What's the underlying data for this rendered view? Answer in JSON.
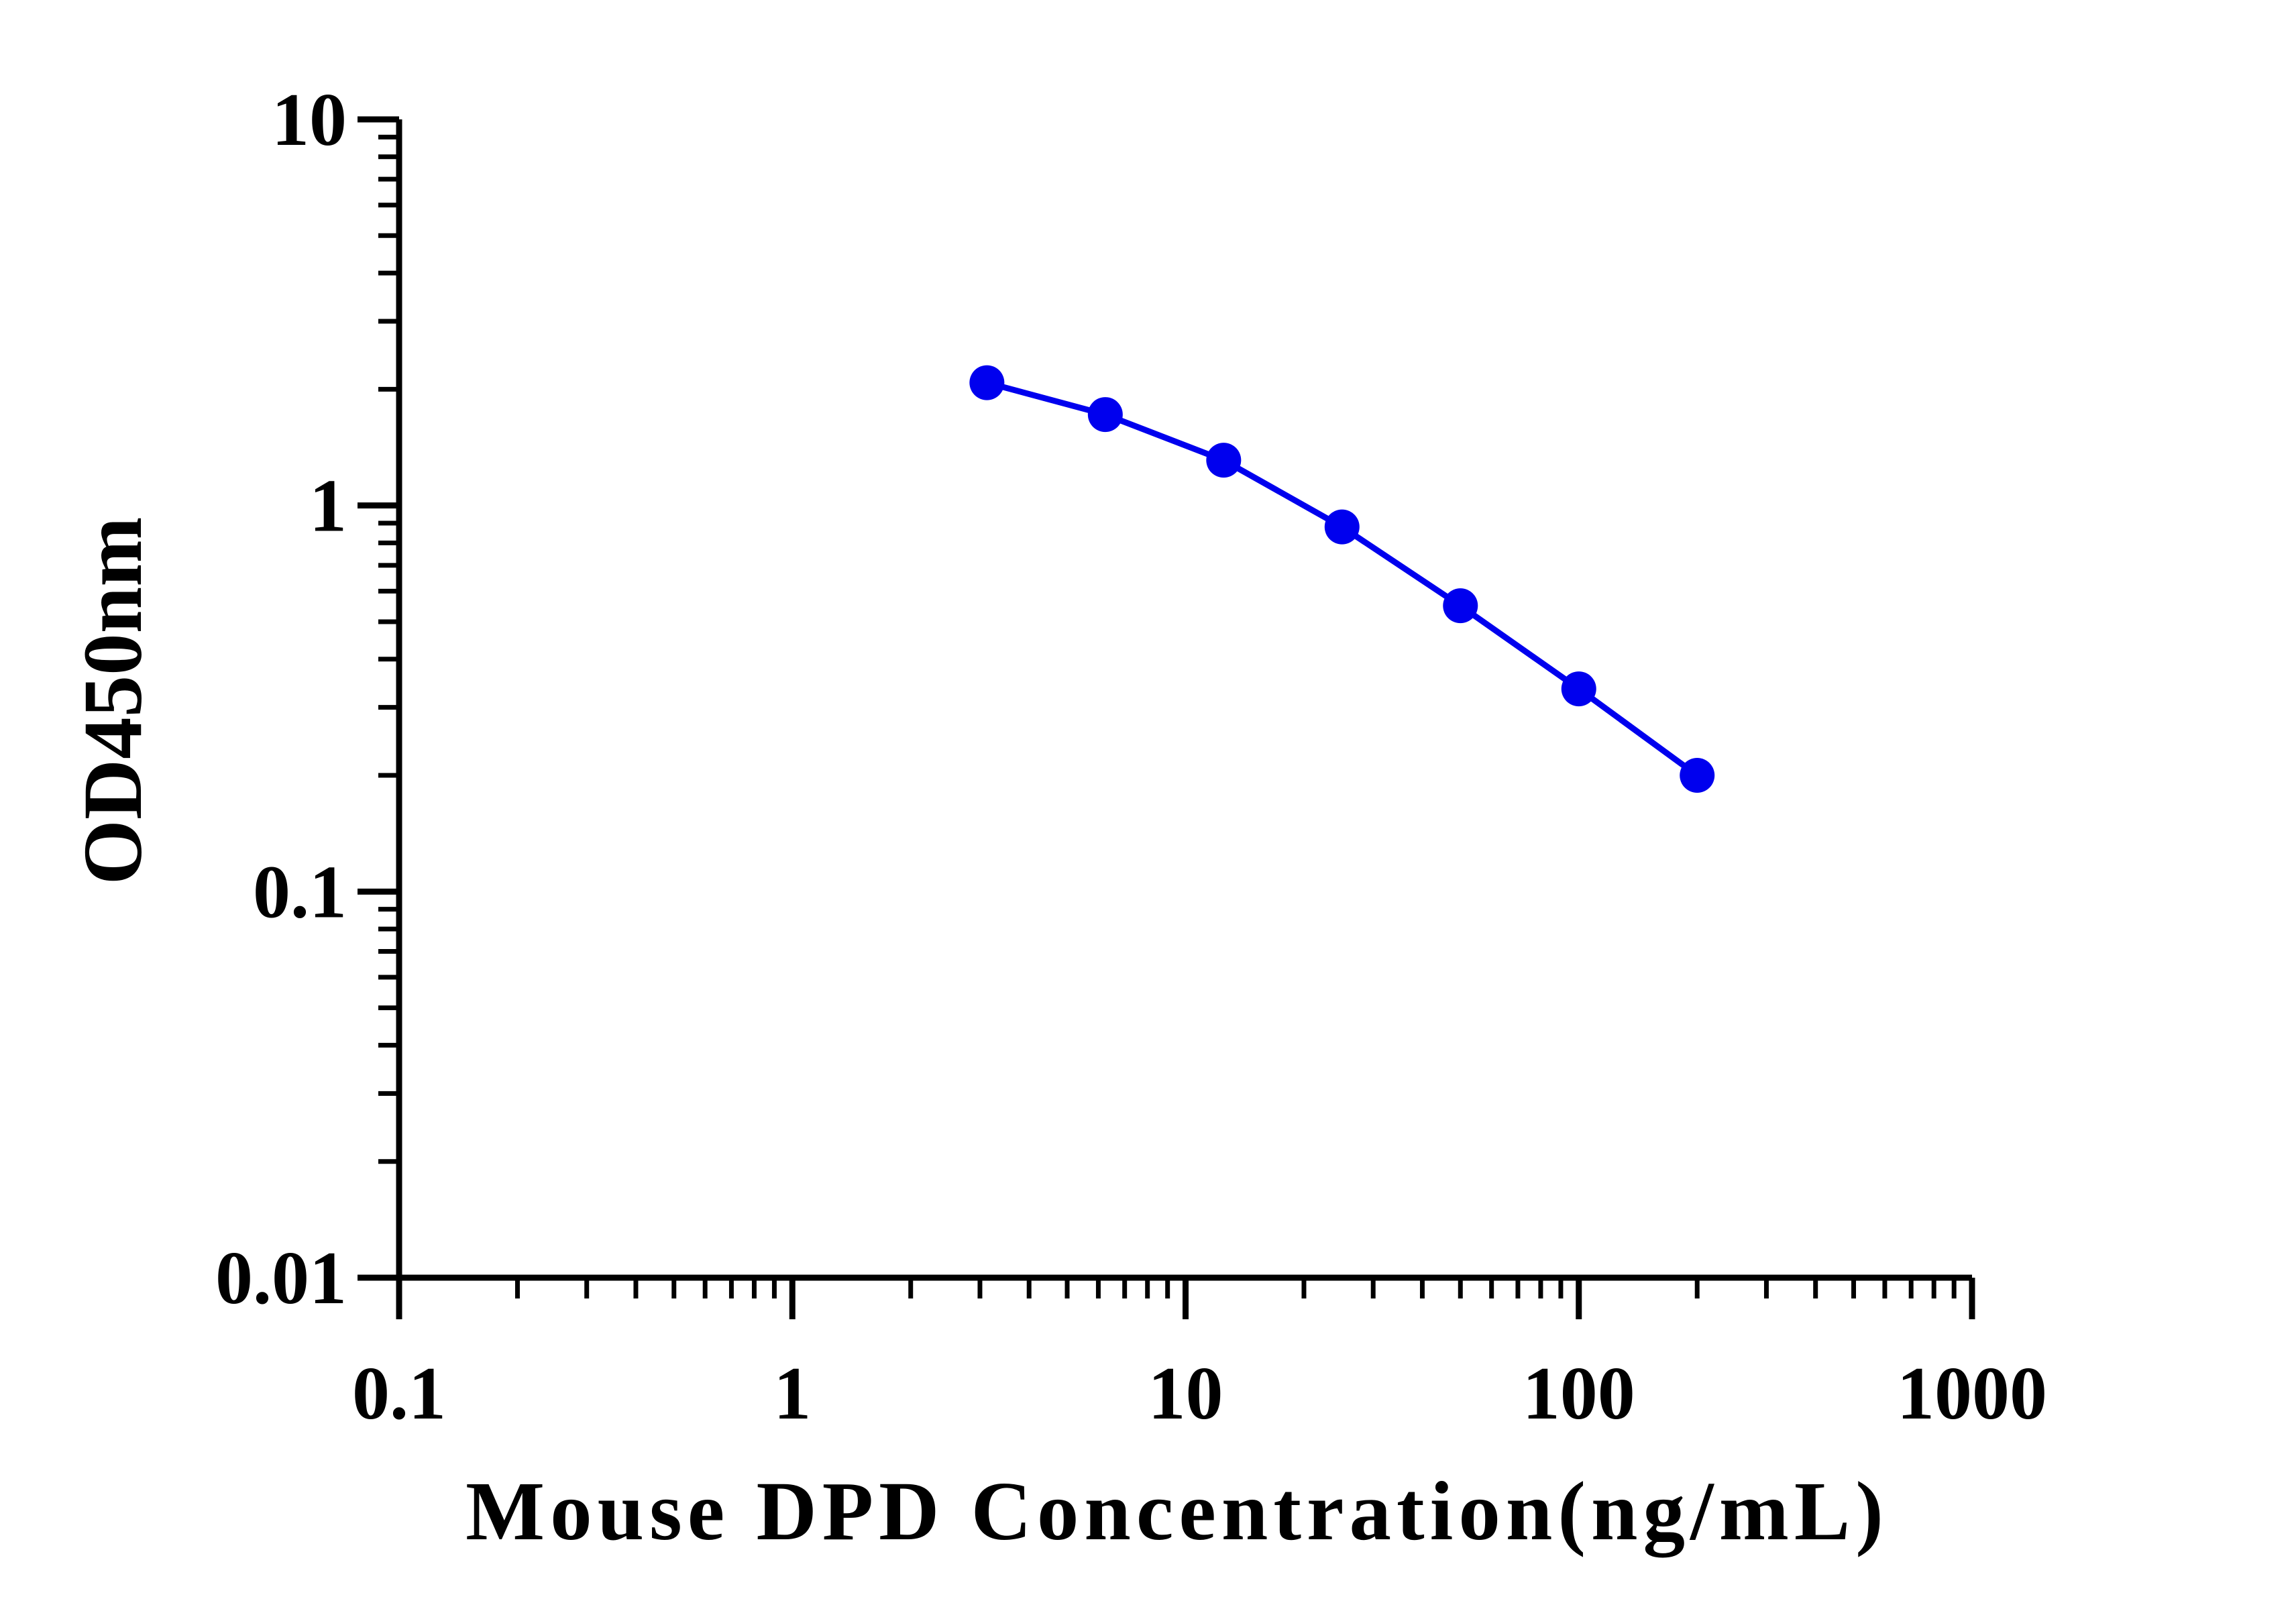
{
  "chart_data": {
    "type": "line",
    "xlabel": "Mouse DPD Concentration(ng/mL)",
    "ylabel": "OD450nm",
    "x_scale": "log",
    "y_scale": "log",
    "xlim": [
      0.1,
      1000
    ],
    "ylim": [
      0.01,
      10
    ],
    "x_tick_labels": [
      "0.1",
      "1",
      "10",
      "100",
      "1000"
    ],
    "y_tick_labels": [
      "0.01",
      "0.1",
      "1",
      "10"
    ],
    "grid": false,
    "legend": "none",
    "series": [
      {
        "x": [
          3.125,
          6.25,
          12.5,
          25,
          50,
          100,
          200
        ],
        "y": [
          2.08,
          1.72,
          1.31,
          0.88,
          0.55,
          0.335,
          0.2
        ],
        "color": "#0000ee",
        "marker": "circle"
      }
    ]
  }
}
